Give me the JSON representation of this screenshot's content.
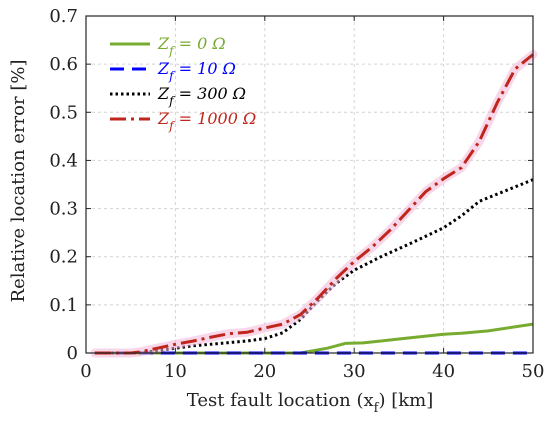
{
  "chart_data": {
    "type": "line",
    "xlabel": "Test fault location (x",
    "xlabel_sub": "f",
    "xlabel_suffix": ") [km]",
    "ylabel": "Relative location error [%]",
    "xlim": [
      0,
      50
    ],
    "ylim": [
      0,
      0.7
    ],
    "xticks": [
      0,
      10,
      20,
      30,
      40,
      50
    ],
    "xtick_labels": [
      "0",
      "10",
      "20",
      "30",
      "40",
      "50"
    ],
    "yticks": [
      0,
      0.1,
      0.2,
      0.3,
      0.4,
      0.5,
      0.6,
      0.7
    ],
    "ytick_labels": [
      "0",
      "0.1",
      "0.2",
      "0.3",
      "0.4",
      "0.5",
      "0.6",
      "0.7"
    ],
    "grid": true,
    "legend_position": "top-left",
    "series": [
      {
        "name": "Z",
        "name_sub": "f",
        "name_suffix": " = 0 Ω",
        "color": "#77ac30",
        "style": "solid",
        "x": [
          1,
          5,
          10,
          15,
          20,
          24,
          27,
          29,
          31,
          35,
          40,
          42,
          45,
          50
        ],
        "y": [
          0,
          0,
          0,
          0,
          0,
          0,
          0.01,
          0.02,
          0.021,
          0.029,
          0.039,
          0.041,
          0.046,
          0.06
        ]
      },
      {
        "name": "Z",
        "name_sub": "f",
        "name_suffix": " = 10 Ω",
        "color": "#0000ff",
        "style": "dashed",
        "x": [
          1,
          10,
          20,
          30,
          40,
          50
        ],
        "y": [
          0,
          0,
          0,
          0,
          0,
          0
        ]
      },
      {
        "name": "Z",
        "name_sub": "f",
        "name_suffix": " = 300 Ω",
        "color": "#000000",
        "style": "dotted",
        "x": [
          1,
          5,
          6,
          8,
          10,
          12,
          15,
          18,
          20,
          22,
          24,
          26,
          28,
          30,
          33,
          36,
          40,
          42,
          44,
          46,
          48,
          50
        ],
        "y": [
          0,
          0,
          0,
          0.005,
          0.01,
          0.015,
          0.02,
          0.025,
          0.03,
          0.042,
          0.07,
          0.11,
          0.145,
          0.172,
          0.2,
          0.225,
          0.26,
          0.285,
          0.315,
          0.33,
          0.345,
          0.36
        ]
      },
      {
        "name": "Z",
        "name_sub": "f",
        "name_suffix": " = 1000 Ω",
        "color": "#c0271c",
        "style": "dashdot",
        "x": [
          1,
          5,
          6,
          8,
          10,
          12,
          14,
          16,
          18,
          20,
          22,
          24,
          26,
          28,
          30,
          32,
          34,
          36,
          38,
          40,
          42,
          44,
          46,
          48,
          50
        ],
        "y": [
          0,
          0,
          0.002,
          0.01,
          0.018,
          0.025,
          0.033,
          0.04,
          0.043,
          0.052,
          0.06,
          0.08,
          0.115,
          0.155,
          0.19,
          0.22,
          0.255,
          0.295,
          0.335,
          0.362,
          0.385,
          0.44,
          0.52,
          0.59,
          0.62
        ]
      }
    ]
  }
}
